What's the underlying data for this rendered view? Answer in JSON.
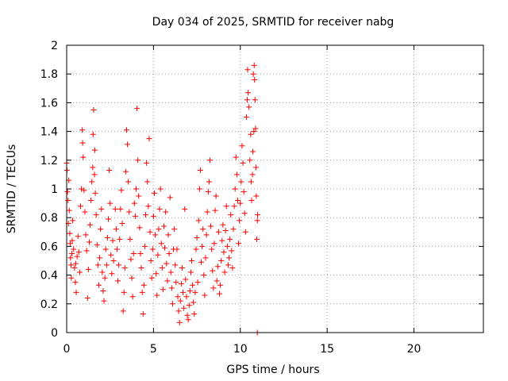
{
  "chart_data": {
    "type": "scatter",
    "title": "Day 034 of 2025, SRMTID for receiver nabg",
    "xlabel": "GPS time / hours",
    "ylabel": "SRMTID / TECUs",
    "xlim": [
      0,
      24
    ],
    "ylim": [
      0,
      2
    ],
    "xticks": [
      0,
      5,
      10,
      15,
      20
    ],
    "xtick_labels": [
      "0",
      "5",
      "10",
      "15",
      "20"
    ],
    "yticks": [
      0,
      0.2,
      0.4,
      0.6,
      0.8,
      1,
      1.2,
      1.4,
      1.6,
      1.8,
      2
    ],
    "ytick_labels": [
      "0",
      "0.2",
      "0.4",
      "0.6",
      "0.8",
      "1",
      "1.2",
      "1.4",
      "1.6",
      "1.8",
      "2"
    ],
    "grid": true,
    "marker": "+",
    "series": [
      {
        "color": "#ff0000",
        "points": [
          [
            0.0,
            1.18
          ],
          [
            0.02,
            1.13
          ],
          [
            0.05,
            0.98
          ],
          [
            0.08,
            0.92
          ],
          [
            0.1,
            0.76
          ],
          [
            0.12,
            1.06
          ],
          [
            0.15,
            0.85
          ],
          [
            0.18,
            0.69
          ],
          [
            0.2,
            0.62
          ],
          [
            0.22,
            0.52
          ],
          [
            0.25,
            0.47
          ],
          [
            0.27,
            0.38
          ],
          [
            0.3,
            0.55
          ],
          [
            0.32,
            0.64
          ],
          [
            0.35,
            0.78
          ],
          [
            0.4,
            0.58
          ],
          [
            0.45,
            0.45
          ],
          [
            0.5,
            0.35
          ],
          [
            0.52,
            0.48
          ],
          [
            0.55,
            0.28
          ],
          [
            0.6,
            0.53
          ],
          [
            0.65,
            0.67
          ],
          [
            0.7,
            0.56
          ],
          [
            0.75,
            0.42
          ],
          [
            0.8,
            0.88
          ],
          [
            0.85,
            1.0
          ],
          [
            0.9,
            1.41
          ],
          [
            0.92,
            1.32
          ],
          [
            0.95,
            1.22
          ],
          [
            1.0,
            0.99
          ],
          [
            1.05,
            0.84
          ],
          [
            1.1,
            0.68
          ],
          [
            1.15,
            0.57
          ],
          [
            1.2,
            0.24
          ],
          [
            1.25,
            0.44
          ],
          [
            1.3,
            0.63
          ],
          [
            1.35,
            0.75
          ],
          [
            1.4,
            0.92
          ],
          [
            1.45,
            1.05
          ],
          [
            1.5,
            1.15
          ],
          [
            1.52,
            1.38
          ],
          [
            1.55,
            1.55
          ],
          [
            1.6,
            1.1
          ],
          [
            1.62,
            1.27
          ],
          [
            1.65,
            0.97
          ],
          [
            1.7,
            0.82
          ],
          [
            1.75,
            0.61
          ],
          [
            1.8,
            0.47
          ],
          [
            1.85,
            0.33
          ],
          [
            1.9,
            0.52
          ],
          [
            1.95,
            0.72
          ],
          [
            2.0,
            0.86
          ],
          [
            2.05,
            0.42
          ],
          [
            2.1,
            0.29
          ],
          [
            2.15,
            0.22
          ],
          [
            2.2,
            0.38
          ],
          [
            2.25,
            0.58
          ],
          [
            2.3,
            0.47
          ],
          [
            2.35,
            0.66
          ],
          [
            2.4,
            0.79
          ],
          [
            2.45,
            1.13
          ],
          [
            2.5,
            0.9
          ],
          [
            2.55,
            0.54
          ],
          [
            2.6,
            0.41
          ],
          [
            2.65,
            0.64
          ],
          [
            2.7,
            0.5
          ],
          [
            2.8,
            0.86
          ],
          [
            2.85,
            0.72
          ],
          [
            2.9,
            0.58
          ],
          [
            2.95,
            0.36
          ],
          [
            3.0,
            0.47
          ],
          [
            3.05,
            0.65
          ],
          [
            3.1,
            0.86
          ],
          [
            3.15,
            0.99
          ],
          [
            3.2,
            0.76
          ],
          [
            3.25,
            0.15
          ],
          [
            3.3,
            0.28
          ],
          [
            3.35,
            0.45
          ],
          [
            3.4,
            1.12
          ],
          [
            3.45,
            1.41
          ],
          [
            3.5,
            1.31
          ],
          [
            3.55,
            1.05
          ],
          [
            3.6,
            0.84
          ],
          [
            3.65,
            0.65
          ],
          [
            3.7,
            0.51
          ],
          [
            3.75,
            0.38
          ],
          [
            3.8,
            0.25
          ],
          [
            3.85,
            0.55
          ],
          [
            3.9,
            0.9
          ],
          [
            3.95,
            0.81
          ],
          [
            4.0,
            1.0
          ],
          [
            4.05,
            1.56
          ],
          [
            4.1,
            1.2
          ],
          [
            4.15,
            0.95
          ],
          [
            4.2,
            0.73
          ],
          [
            4.25,
            0.55
          ],
          [
            4.3,
            0.45
          ],
          [
            4.35,
            0.28
          ],
          [
            4.4,
            0.13
          ],
          [
            4.45,
            0.33
          ],
          [
            4.5,
            0.6
          ],
          [
            4.55,
            0.82
          ],
          [
            4.6,
            1.18
          ],
          [
            4.65,
            1.05
          ],
          [
            4.7,
            0.88
          ],
          [
            4.75,
            1.35
          ],
          [
            4.8,
            0.7
          ],
          [
            4.85,
            0.5
          ],
          [
            4.9,
            0.38
          ],
          [
            4.95,
            0.58
          ],
          [
            5.0,
            0.81
          ],
          [
            5.05,
            0.97
          ],
          [
            5.1,
            0.68
          ],
          [
            5.15,
            0.41
          ],
          [
            5.2,
            0.26
          ],
          [
            5.25,
            0.54
          ],
          [
            5.3,
            0.72
          ],
          [
            5.35,
            0.86
          ],
          [
            5.4,
            1.0
          ],
          [
            5.45,
            0.62
          ],
          [
            5.5,
            0.45
          ],
          [
            5.55,
            0.3
          ],
          [
            5.6,
            0.74
          ],
          [
            5.65,
            0.59
          ],
          [
            5.7,
            0.84
          ],
          [
            5.75,
            0.48
          ],
          [
            5.8,
            0.36
          ],
          [
            5.85,
            0.68
          ],
          [
            5.9,
            0.55
          ],
          [
            5.95,
            0.94
          ],
          [
            6.0,
            0.42
          ],
          [
            6.05,
            0.31
          ],
          [
            6.1,
            0.2
          ],
          [
            6.15,
            0.58
          ],
          [
            6.2,
            0.72
          ],
          [
            6.25,
            0.47
          ],
          [
            6.3,
            0.35
          ],
          [
            6.35,
            0.58
          ],
          [
            6.4,
            0.25
          ],
          [
            6.45,
            0.15
          ],
          [
            6.5,
            0.07
          ],
          [
            6.55,
            0.22
          ],
          [
            6.6,
            0.34
          ],
          [
            6.65,
            0.45
          ],
          [
            6.7,
            0.28
          ],
          [
            6.75,
            0.17
          ],
          [
            6.8,
            0.86
          ],
          [
            6.85,
            0.37
          ],
          [
            6.9,
            0.25
          ],
          [
            6.95,
            0.12
          ],
          [
            7.0,
            0.09
          ],
          [
            7.05,
            0.19
          ],
          [
            7.1,
            0.29
          ],
          [
            7.15,
            0.42
          ],
          [
            7.2,
            0.5
          ],
          [
            7.25,
            0.33
          ],
          [
            7.3,
            0.21
          ],
          [
            7.35,
            0.13
          ],
          [
            7.4,
            0.28
          ],
          [
            7.45,
            0.58
          ],
          [
            7.5,
            0.66
          ],
          [
            7.55,
            0.35
          ],
          [
            7.6,
            0.78
          ],
          [
            7.65,
            1.0
          ],
          [
            7.7,
            1.13
          ],
          [
            7.75,
            0.49
          ],
          [
            7.8,
            0.6
          ],
          [
            7.85,
            0.72
          ],
          [
            7.9,
            0.4
          ],
          [
            7.95,
            0.26
          ],
          [
            8.0,
            0.52
          ],
          [
            8.05,
            0.68
          ],
          [
            8.1,
            0.84
          ],
          [
            8.15,
            0.98
          ],
          [
            8.2,
            1.05
          ],
          [
            8.25,
            1.2
          ],
          [
            8.3,
            0.74
          ],
          [
            8.35,
            0.58
          ],
          [
            8.4,
            0.43
          ],
          [
            8.45,
            0.31
          ],
          [
            8.5,
            0.62
          ],
          [
            8.55,
            0.85
          ],
          [
            8.6,
            0.95
          ],
          [
            8.65,
            0.36
          ],
          [
            8.7,
            0.46
          ],
          [
            8.75,
            0.7
          ],
          [
            8.8,
            0.27
          ],
          [
            8.85,
            0.33
          ],
          [
            8.9,
            0.5
          ],
          [
            8.95,
            0.64
          ],
          [
            9.0,
            0.75
          ],
          [
            9.05,
            0.56
          ],
          [
            9.1,
            0.42
          ],
          [
            9.15,
            0.71
          ],
          [
            9.2,
            0.88
          ],
          [
            9.25,
            0.6
          ],
          [
            9.3,
            0.47
          ],
          [
            9.35,
            0.52
          ],
          [
            9.4,
            0.65
          ],
          [
            9.45,
            0.82
          ],
          [
            9.5,
            0.57
          ],
          [
            9.55,
            0.45
          ],
          [
            9.6,
            0.72
          ],
          [
            9.65,
            0.88
          ],
          [
            9.7,
            1.0
          ],
          [
            9.75,
            1.22
          ],
          [
            9.8,
            1.1
          ],
          [
            9.85,
            0.92
          ],
          [
            9.9,
            0.62
          ],
          [
            9.95,
            0.78
          ],
          [
            10.0,
            0.9
          ],
          [
            10.05,
            1.05
          ],
          [
            10.1,
            1.3
          ],
          [
            10.15,
            1.18
          ],
          [
            10.2,
            0.98
          ],
          [
            10.25,
            0.83
          ],
          [
            10.3,
            0.7
          ],
          [
            10.35,
            1.5
          ],
          [
            10.4,
            1.62
          ],
          [
            10.42,
            1.83
          ],
          [
            10.45,
            1.67
          ],
          [
            10.5,
            1.57
          ],
          [
            10.55,
            1.2
          ],
          [
            10.6,
            1.38
          ],
          [
            10.62,
            1.05
          ],
          [
            10.65,
            0.92
          ],
          [
            10.7,
            1.1
          ],
          [
            10.72,
            1.26
          ],
          [
            10.75,
            1.8
          ],
          [
            10.78,
            1.4
          ],
          [
            10.8,
            1.86
          ],
          [
            10.82,
            1.76
          ],
          [
            10.85,
            1.62
          ],
          [
            10.88,
            1.42
          ],
          [
            10.9,
            1.15
          ],
          [
            10.92,
            0.95
          ],
          [
            10.95,
            0.65
          ],
          [
            10.98,
            0.78
          ],
          [
            11.0,
            0.82
          ],
          [
            10.98,
            0.0
          ]
        ]
      }
    ]
  }
}
